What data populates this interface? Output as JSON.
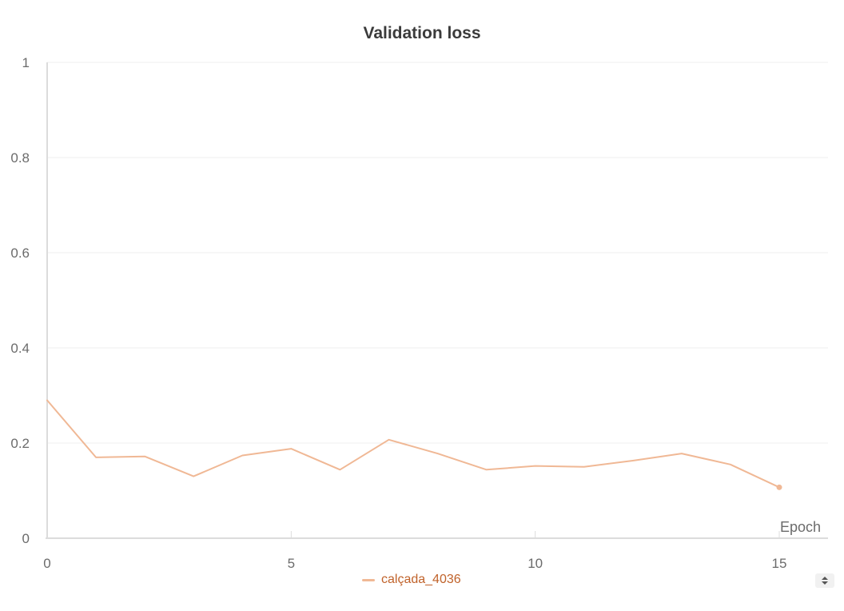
{
  "chart_data": {
    "type": "line",
    "title": "Validation loss",
    "xlabel": "Epoch",
    "ylabel": "",
    "xlim": [
      0,
      16
    ],
    "ylim": [
      0,
      1
    ],
    "xticks": [
      0,
      5,
      10,
      15
    ],
    "yticks": [
      0,
      0.2,
      0.4,
      0.6,
      0.8,
      1
    ],
    "ytick_labels": [
      "0",
      "0.2",
      "0.4",
      "0.6",
      "0.8",
      "1"
    ],
    "xtick_labels": [
      "0",
      "5",
      "10",
      "15"
    ],
    "grid": true,
    "legend_position": "bottom-center",
    "series": [
      {
        "name": "calçada_4036",
        "color": "#f0b895",
        "x": [
          0,
          1,
          2,
          3,
          4,
          5,
          6,
          7,
          8,
          9,
          10,
          11,
          12,
          13,
          14,
          15
        ],
        "values": [
          0.29,
          0.17,
          0.172,
          0.13,
          0.174,
          0.188,
          0.144,
          0.207,
          0.178,
          0.144,
          0.152,
          0.15,
          0.163,
          0.178,
          0.155,
          0.107
        ]
      }
    ]
  },
  "legend": {
    "scroll_icon": "up-down-arrows-icon"
  }
}
